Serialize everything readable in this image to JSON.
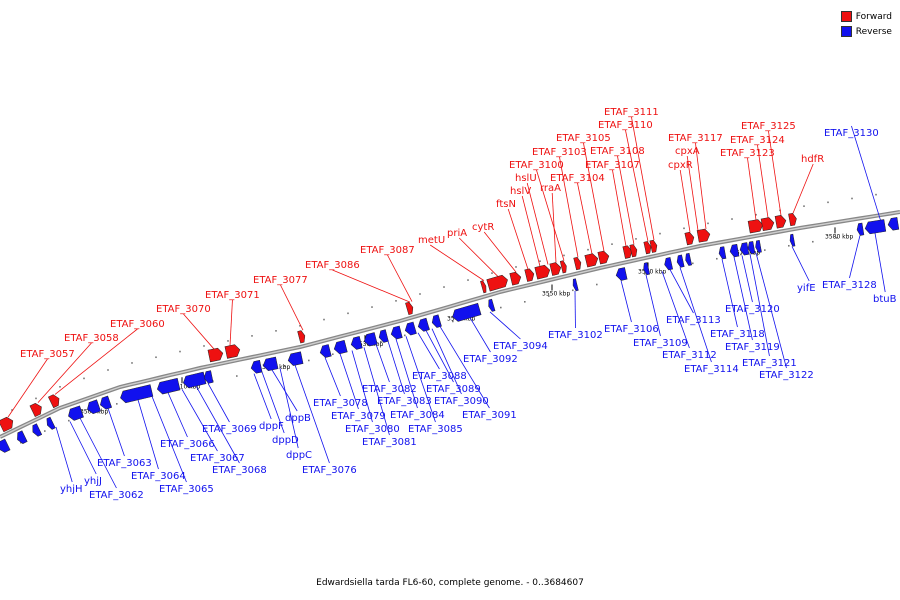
{
  "legend": {
    "items": [
      {
        "label": "Forward",
        "color": "#ee1111"
      },
      {
        "label": "Reverse",
        "color": "#1111ee"
      }
    ]
  },
  "footer": {
    "caption": "Edwardsiella tarda FL6-60, complete genome. - 0..3684607"
  },
  "chart_data": {
    "type": "genome_map",
    "ticks": [
      "3500 kbp",
      "3510 kbp",
      "3520 kbp",
      "3530 kbp",
      "3540 kbp",
      "3550 kbp",
      "3560 kbp",
      "3570 kbp",
      "3580 kbp"
    ],
    "forward_genes": [
      "ETAF_3057",
      "ETAF_3058",
      "ETAF_3060",
      "ETAF_3070",
      "ETAF_3071",
      "ETAF_3077",
      "ETAF_3086",
      "ETAF_3087",
      "metU",
      "priA",
      "cytR",
      "ftsN",
      "hslV",
      "hslU",
      "rraA",
      "ETAF_3100",
      "ETAF_3103",
      "ETAF_3104",
      "ETAF_3105",
      "ETAF_3107",
      "ETAF_3108",
      "ETAF_3110",
      "ETAF_3111",
      "cpxR",
      "cpxA",
      "ETAF_3117",
      "ETAF_3123",
      "ETAF_3124",
      "ETAF_3125",
      "hdfR"
    ],
    "reverse_genes": [
      "yhjH",
      "yhjJ",
      "ETAF_3062",
      "ETAF_3063",
      "ETAF_3064",
      "ETAF_3065",
      "ETAF_3066",
      "ETAF_3067",
      "ETAF_3068",
      "ETAF_3069",
      "dppF",
      "dppD",
      "dppB",
      "dppC",
      "ETAF_3076",
      "ETAF_3078",
      "ETAF_3079",
      "ETAF_3080",
      "ETAF_3081",
      "ETAF_3082",
      "ETAF_3083",
      "ETAF_3084",
      "ETAF_3085",
      "ETAF_3088",
      "ETAF_3089",
      "ETAF_3090",
      "ETAF_3091",
      "ETAF_3092",
      "ETAF_3094",
      "ETAF_3102",
      "ETAF_3106",
      "ETAF_3109",
      "ETAF_3112",
      "ETAF_3113",
      "ETAF_3114",
      "ETAF_3118",
      "ETAF_3119",
      "ETAF_3120",
      "ETAF_3121",
      "ETAF_3122",
      "yifE",
      "ETAF_3128",
      "btuB",
      "ETAF_3130"
    ]
  }
}
